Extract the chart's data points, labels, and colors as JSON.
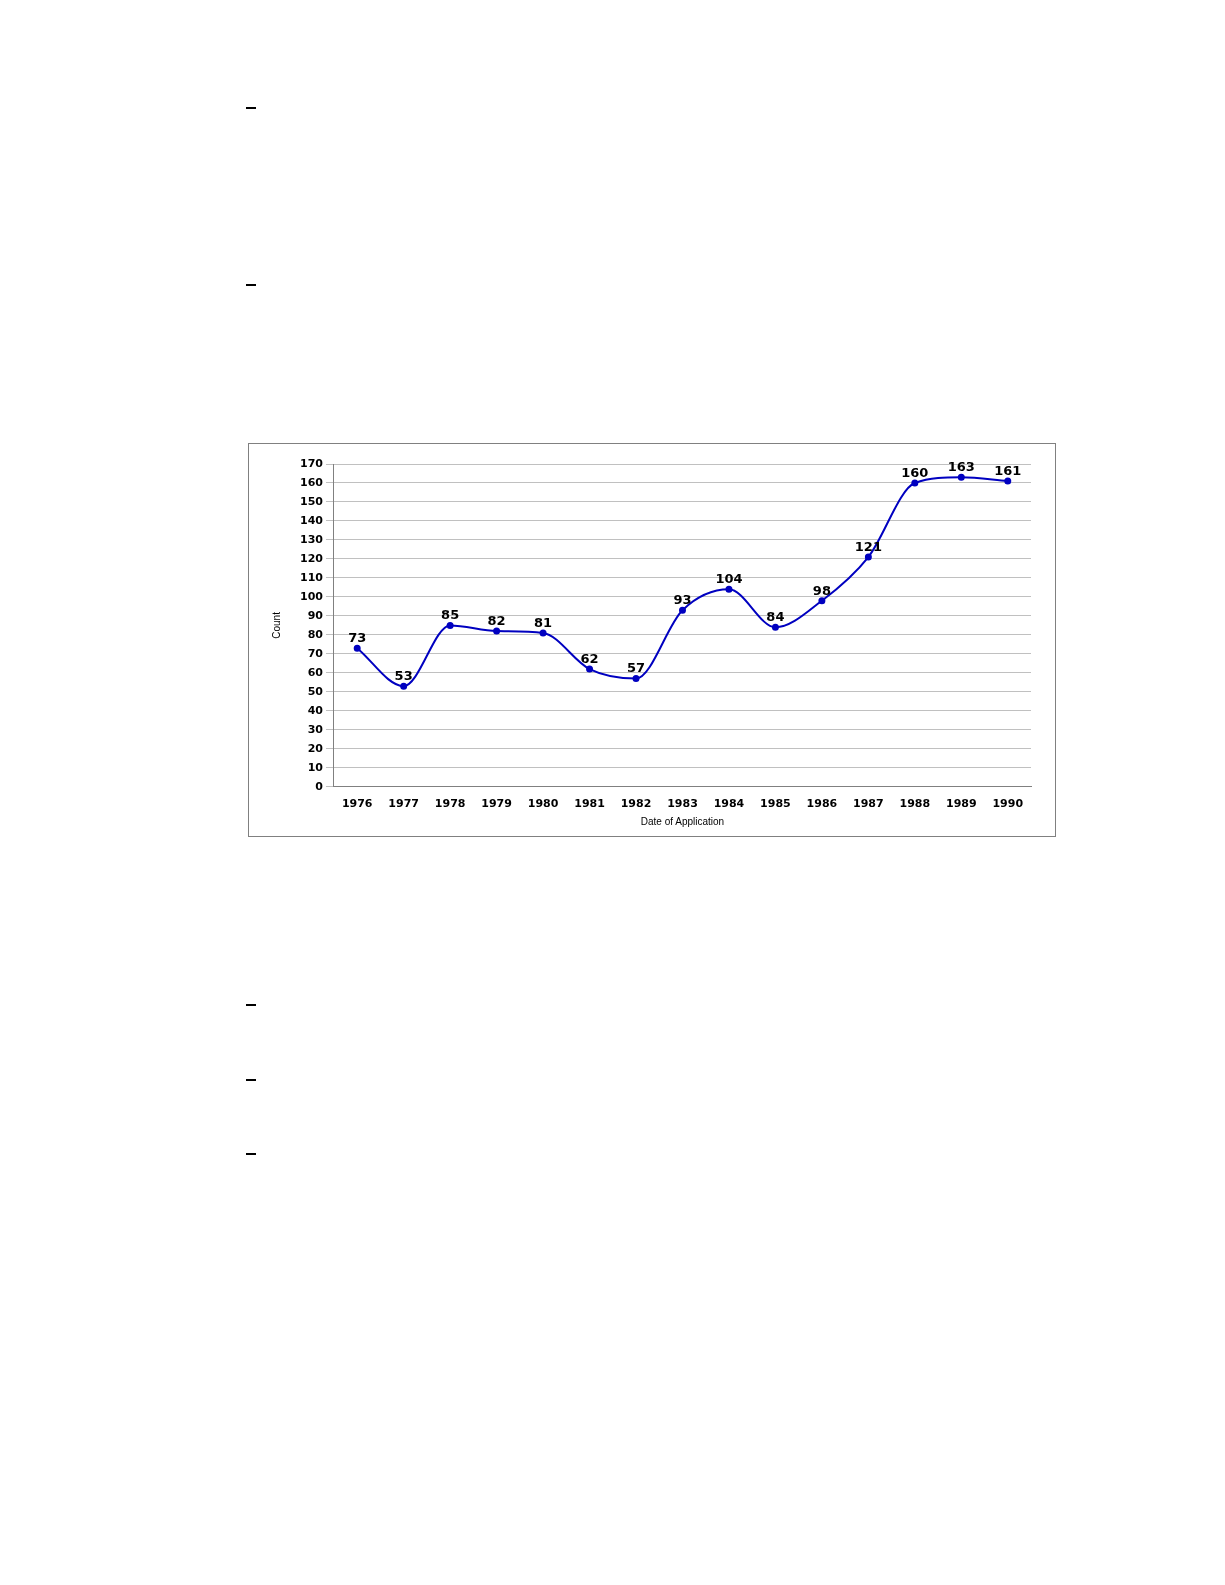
{
  "chart_data": {
    "type": "line",
    "xlabel": "Date of Application",
    "ylabel": "Count",
    "categories": [
      "1976",
      "1977",
      "1978",
      "1979",
      "1980",
      "1981",
      "1982",
      "1983",
      "1984",
      "1985",
      "1986",
      "1987",
      "1988",
      "1989",
      "1990"
    ],
    "series": [
      {
        "color": "#0000c0",
        "values": [
          73,
          53,
          85,
          82,
          81,
          62,
          57,
          93,
          104,
          84,
          98,
          121,
          160,
          163,
          161
        ]
      }
    ],
    "ylim": [
      0,
      170
    ],
    "yticks": [
      0,
      10,
      20,
      30,
      40,
      50,
      60,
      70,
      80,
      90,
      100,
      110,
      120,
      130,
      140,
      150,
      160,
      170
    ],
    "grid": "y",
    "legend": false,
    "marker": "circle",
    "line_style": "solid",
    "data_labels": true
  }
}
